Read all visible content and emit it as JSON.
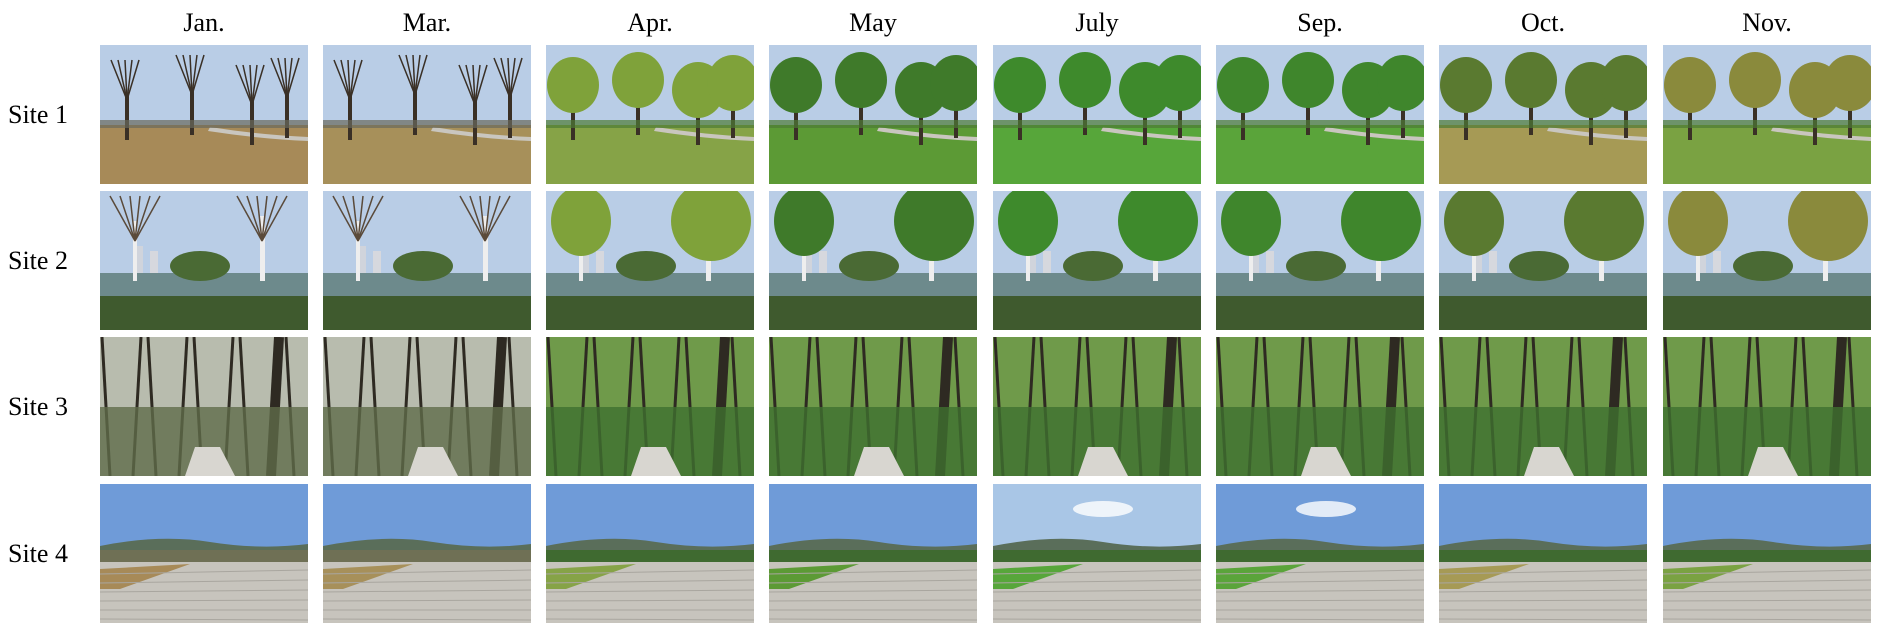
{
  "months": [
    "Jan.",
    "Mar.",
    "Apr.",
    "May",
    "July",
    "Sep.",
    "Oct.",
    "Nov."
  ],
  "sites": [
    "Site 1",
    "Site 2",
    "Site 3",
    "Site 4"
  ],
  "colors": {
    "grass_by_month": [
      "#a78a58",
      "#a7905a",
      "#86a347",
      "#5c9a35",
      "#57a63a",
      "#5aa43a",
      "#a69a55",
      "#7aa242"
    ],
    "foliage_by_month": [
      "#5a4b3a",
      "#5e4e3b",
      "#7fa23a",
      "#3f7a2a",
      "#3e8a2c",
      "#3f862c",
      "#5a7a30",
      "#8a8a3c"
    ],
    "sky": "#b9cde6",
    "water": "#6d8a8c",
    "pavement": "#c7c4bd"
  }
}
